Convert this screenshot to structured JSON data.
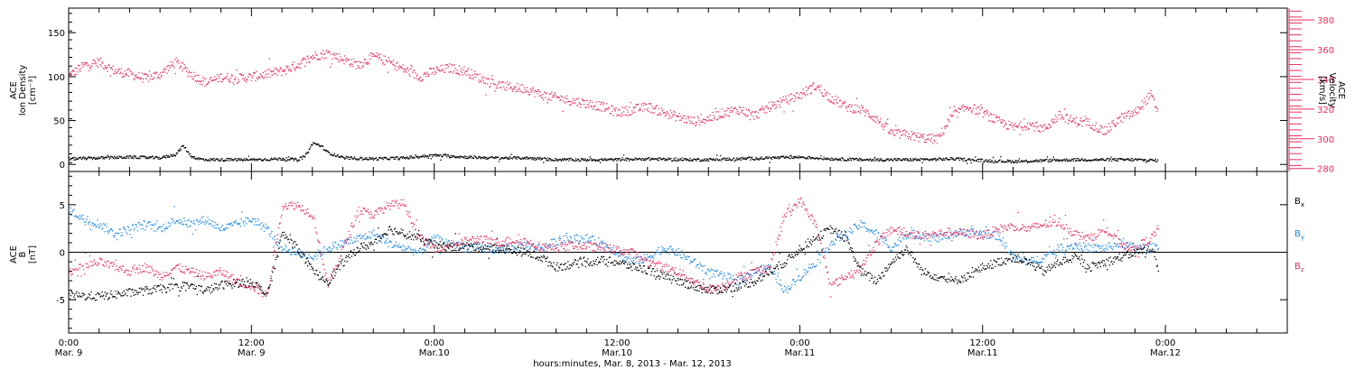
{
  "chart_data": [
    {
      "type": "scatter",
      "panel": "top",
      "ylabel_lines": [
        "ACE",
        "Ion Density",
        "[cm⁻³]"
      ],
      "y2label_lines": [
        "ACE",
        "Velocity",
        "[km/s]"
      ],
      "yticks": [
        "0",
        "50",
        "100",
        "150"
      ],
      "ytick_values": [
        0,
        50,
        100,
        150
      ],
      "ylim": [
        -8,
        178
      ],
      "y2ticks": [
        "280",
        "300",
        "320",
        "340",
        "360",
        "380"
      ],
      "y2tick_values": [
        280,
        300,
        320,
        340,
        360,
        380
      ],
      "y2lim": [
        278,
        388
      ],
      "series": [
        {
          "axis": "left",
          "color": "#000000",
          "x": [
            0,
            2,
            4,
            6,
            7,
            7.5,
            8,
            8.5,
            9,
            10,
            12,
            14,
            15,
            15.5,
            16,
            16.5,
            17,
            18,
            20,
            22,
            24,
            26,
            28,
            30,
            32,
            34,
            36,
            38,
            40,
            42,
            44,
            46,
            48,
            50,
            52,
            54,
            56,
            58,
            60,
            62,
            64,
            66,
            68,
            70,
            71.5
          ],
          "y": [
            7,
            8,
            9,
            8,
            12,
            22,
            10,
            7,
            6,
            6,
            6,
            7,
            6,
            10,
            25,
            22,
            14,
            8,
            7,
            8,
            11,
            9,
            8,
            8,
            6,
            6,
            6,
            7,
            6,
            6,
            7,
            8,
            9,
            7,
            6,
            6,
            6,
            7,
            5,
            4,
            5,
            6,
            6,
            6,
            5
          ]
        },
        {
          "axis": "right",
          "color": "#e8305e",
          "x": [
            0,
            1,
            2,
            3,
            4,
            5,
            6,
            7,
            8,
            9,
            10,
            11,
            12,
            13,
            14,
            15,
            16,
            17,
            18,
            19,
            20,
            21,
            22,
            23,
            24,
            25,
            26,
            27,
            28,
            29,
            30,
            31,
            32,
            33,
            34,
            35,
            36,
            37,
            38,
            39,
            40,
            41,
            42,
            43,
            44,
            45,
            46,
            47,
            48,
            49,
            50,
            51,
            52,
            53,
            54,
            55,
            56,
            57,
            58,
            59,
            60,
            61,
            62,
            63,
            64,
            65,
            66,
            67,
            68,
            69,
            70,
            71,
            71.5
          ],
          "y": [
            343,
            350,
            352,
            346,
            344,
            341,
            344,
            352,
            344,
            338,
            342,
            341,
            342,
            344,
            346,
            350,
            356,
            358,
            354,
            350,
            356,
            352,
            347,
            342,
            346,
            348,
            346,
            341,
            337,
            335,
            334,
            330,
            328,
            326,
            324,
            322,
            318,
            320,
            322,
            318,
            315,
            312,
            314,
            318,
            320,
            316,
            322,
            326,
            330,
            336,
            328,
            322,
            320,
            314,
            304,
            303,
            301,
            300,
            316,
            322,
            318,
            312,
            308,
            310,
            307,
            316,
            312,
            311,
            305,
            314,
            318,
            330,
            318
          ]
        }
      ]
    },
    {
      "type": "scatter",
      "panel": "bottom",
      "ylabel_lines": [
        "ACE",
        "B",
        "[nT]"
      ],
      "yticks": [
        "-5",
        "0",
        "5"
      ],
      "ytick_values": [
        -5,
        0,
        5
      ],
      "ylim": [
        -8.5,
        8.5
      ],
      "zero_line": true,
      "series": [
        {
          "name": "Bx",
          "color": "#000000",
          "x": [
            0,
            2,
            4,
            6,
            8,
            9,
            10,
            12,
            13,
            14,
            15,
            16,
            17,
            18,
            19,
            20,
            21,
            22,
            23,
            24,
            25,
            26,
            27,
            28,
            29,
            30,
            31,
            32,
            33,
            34,
            35,
            36,
            37,
            38,
            39,
            40,
            41,
            42,
            43,
            44,
            45,
            46,
            47,
            48,
            49,
            50,
            51,
            52,
            53,
            54,
            55,
            56,
            57,
            58,
            59,
            60,
            61,
            62,
            63,
            64,
            65,
            66,
            67,
            68,
            69,
            70,
            71,
            71.5
          ],
          "y": [
            -4.5,
            -4.6,
            -4.2,
            -3.8,
            -3.5,
            -4.0,
            -3.4,
            -3.0,
            -4.5,
            2.0,
            0.5,
            -2.0,
            -3.0,
            -1.0,
            0.5,
            1.0,
            2.5,
            2.0,
            1.5,
            0.8,
            0.6,
            0.7,
            0.6,
            0.5,
            0.3,
            0.0,
            -0.5,
            -1.5,
            -1.2,
            -1.0,
            -0.8,
            -1.0,
            -1.5,
            -1.8,
            -2.5,
            -3.0,
            -3.5,
            -4.0,
            -3.8,
            -3.5,
            -3.0,
            -2.0,
            -1.0,
            0.5,
            1.5,
            2.5,
            1.5,
            -2.0,
            -3.0,
            -1.0,
            0.5,
            -2.0,
            -2.5,
            -3.0,
            -2.5,
            -1.5,
            -1.0,
            -0.5,
            -1.0,
            -2.0,
            -1.0,
            -0.5,
            -1.5,
            -1.0,
            -0.5,
            0.0,
            0.5,
            -1.5
          ]
        },
        {
          "name": "By",
          "color": "#1e88e5",
          "x": [
            0,
            1,
            2,
            3,
            4,
            5,
            6,
            7,
            8,
            9,
            10,
            11,
            12,
            13,
            14,
            15,
            16,
            17,
            18,
            19,
            20,
            21,
            22,
            23,
            24,
            25,
            26,
            27,
            28,
            29,
            30,
            31,
            32,
            33,
            34,
            35,
            36,
            37,
            38,
            39,
            40,
            41,
            42,
            43,
            44,
            45,
            46,
            47,
            48,
            49,
            50,
            51,
            52,
            53,
            54,
            55,
            56,
            57,
            58,
            59,
            60,
            61,
            62,
            63,
            64,
            65,
            66,
            67,
            68,
            69,
            70,
            71,
            71.5
          ],
          "y": [
            4.5,
            3.5,
            3.0,
            2.0,
            2.5,
            3.0,
            2.5,
            3.5,
            3.0,
            3.5,
            2.5,
            3.0,
            3.5,
            2.5,
            0.5,
            0.0,
            -0.5,
            0.5,
            1.0,
            1.5,
            2.0,
            1.0,
            0.5,
            0.0,
            1.5,
            1.0,
            0.5,
            0.5,
            0.3,
            0.5,
            0.8,
            0.5,
            1.2,
            1.5,
            1.5,
            1.0,
            0.0,
            -1.0,
            -0.5,
            0.5,
            0.0,
            -1.0,
            -2.0,
            -2.5,
            -3.0,
            -2.0,
            -1.5,
            -4.0,
            -2.5,
            -1.0,
            1.0,
            2.0,
            3.0,
            2.0,
            0.5,
            2.0,
            1.8,
            1.5,
            2.0,
            2.2,
            2.0,
            1.8,
            -0.5,
            -1.0,
            -0.5,
            0.5,
            0.8,
            0.5,
            0.5,
            1.0,
            0.5,
            0.5,
            0.8
          ]
        },
        {
          "name": "Bz",
          "color": "#e8305e",
          "x": [
            0,
            1,
            2,
            3,
            4,
            5,
            6,
            7,
            8,
            9,
            10,
            11,
            12,
            13,
            14,
            15,
            16,
            17,
            18,
            19,
            20,
            21,
            22,
            23,
            24,
            25,
            26,
            27,
            28,
            29,
            30,
            31,
            32,
            33,
            34,
            35,
            36,
            37,
            38,
            39,
            40,
            41,
            42,
            43,
            44,
            45,
            46,
            47,
            48,
            49,
            50,
            51,
            52,
            53,
            54,
            55,
            56,
            57,
            58,
            59,
            60,
            61,
            62,
            63,
            64,
            65,
            66,
            67,
            68,
            69,
            70,
            71,
            71.5
          ],
          "y": [
            -2.0,
            -1.5,
            -1.0,
            -1.5,
            -2.0,
            -1.5,
            -2.5,
            -1.5,
            -2.0,
            -2.5,
            -2.0,
            -3.0,
            -3.5,
            -4.5,
            5.0,
            5.0,
            4.0,
            -3.5,
            0.5,
            4.5,
            4.0,
            5.0,
            5.2,
            1.5,
            0.5,
            0.8,
            1.2,
            1.5,
            1.0,
            1.3,
            1.2,
            0.6,
            0.5,
            0.8,
            0.7,
            0.5,
            0.3,
            0.0,
            -1.0,
            -1.5,
            -2.0,
            -3.0,
            -3.8,
            -3.5,
            -2.5,
            -2.0,
            -1.5,
            4.0,
            5.5,
            3.0,
            -3.5,
            -2.5,
            -1.5,
            1.0,
            2.5,
            2.0,
            1.8,
            2.0,
            2.2,
            2.0,
            1.8,
            2.5,
            2.8,
            2.5,
            3.0,
            3.2,
            2.0,
            1.5,
            2.5,
            1.0,
            0.5,
            1.5,
            2.5
          ]
        }
      ],
      "legend": [
        "Bx",
        "By",
        "Bz"
      ],
      "legend_display": [
        {
          "base": "B",
          "sub": "x"
        },
        {
          "base": "B",
          "sub": "y"
        },
        {
          "base": "B",
          "sub": "z"
        }
      ]
    }
  ],
  "xaxis": {
    "xlim": [
      0,
      80
    ],
    "major_ticks": [
      {
        "x": 0,
        "time": "0:00",
        "date": "Mar. 9"
      },
      {
        "x": 12,
        "time": "12:00",
        "date": "Mar. 9"
      },
      {
        "x": 24,
        "time": "0:00",
        "date": "Mar.10"
      },
      {
        "x": 36,
        "time": "12:00",
        "date": "Mar.10"
      },
      {
        "x": 48,
        "time": "0:00",
        "date": "Mar.11"
      },
      {
        "x": 60,
        "time": "12:00",
        "date": "Mar.11"
      },
      {
        "x": 72,
        "time": "0:00",
        "date": "Mar.12"
      }
    ],
    "xlabel": "hours:minutes, Mar.  8, 2013 - Mar. 12, 2013"
  },
  "colors": {
    "density": "#000000",
    "velocity": "#e8305e",
    "bx": "#000000",
    "by": "#1e88e5",
    "bz": "#e8305e",
    "axis": "#000000"
  }
}
